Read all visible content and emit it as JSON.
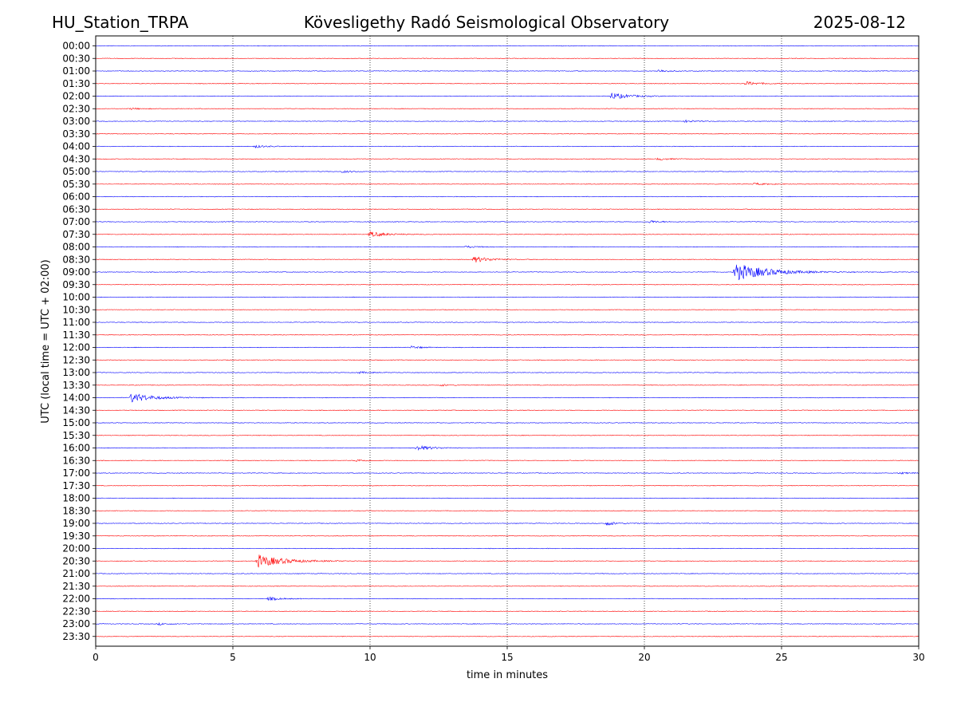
{
  "header": {
    "station": "HU_Station_TRPA",
    "observatory": "Kövesligethy Radó Seismological Observatory",
    "date": "2025-08-12"
  },
  "chart_data": {
    "type": "line",
    "title": "Kövesligethy Radó Seismological Observatory",
    "xlabel": "time in minutes",
    "ylabel": "UTC (local time = UTC + 02:00)",
    "xlim": [
      0,
      30
    ],
    "xticks": [
      "0",
      "5",
      "10",
      "15",
      "20",
      "25",
      "30"
    ],
    "grid": "vertical dotted lines at 5-minute intervals",
    "colors": {
      "even_rows": "#0000ff",
      "odd_rows": "#ff0000"
    },
    "rows": [
      "00:00",
      "00:30",
      "01:00",
      "01:30",
      "02:00",
      "02:30",
      "03:00",
      "03:30",
      "04:00",
      "04:30",
      "05:00",
      "05:30",
      "06:00",
      "06:30",
      "07:00",
      "07:30",
      "08:00",
      "08:30",
      "09:00",
      "09:30",
      "10:00",
      "10:30",
      "11:00",
      "11:30",
      "12:00",
      "12:30",
      "13:00",
      "13:30",
      "14:00",
      "14:30",
      "15:00",
      "15:30",
      "16:00",
      "16:30",
      "17:00",
      "17:30",
      "18:00",
      "18:30",
      "19:00",
      "19:30",
      "20:00",
      "20:30",
      "21:00",
      "21:30",
      "22:00",
      "22:30",
      "23:00",
      "23:30"
    ],
    "events": [
      {
        "row": "01:00",
        "minute": 20.5,
        "amplitude": 0.4
      },
      {
        "row": "01:30",
        "minute": 23.7,
        "amplitude": 0.6
      },
      {
        "row": "02:00",
        "minute": 18.8,
        "amplitude": 1.0
      },
      {
        "row": "02:30",
        "minute": 1.3,
        "amplitude": 0.25
      },
      {
        "row": "03:00",
        "minute": 21.5,
        "amplitude": 0.35
      },
      {
        "row": "04:00",
        "minute": 5.8,
        "amplitude": 0.4
      },
      {
        "row": "04:30",
        "minute": 20.5,
        "amplitude": 0.35
      },
      {
        "row": "05:00",
        "minute": 9.0,
        "amplitude": 0.35
      },
      {
        "row": "05:30",
        "minute": 24.0,
        "amplitude": 0.35
      },
      {
        "row": "07:00",
        "minute": 20.2,
        "amplitude": 0.4
      },
      {
        "row": "07:30",
        "minute": 10.0,
        "amplitude": 0.8
      },
      {
        "row": "08:00",
        "minute": 13.5,
        "amplitude": 0.3
      },
      {
        "row": "08:30",
        "minute": 13.8,
        "amplitude": 0.9
      },
      {
        "row": "09:00",
        "minute": 23.3,
        "amplitude": 2.6
      },
      {
        "row": "12:00",
        "minute": 11.5,
        "amplitude": 0.4
      },
      {
        "row": "13:00",
        "minute": 9.6,
        "amplitude": 0.3
      },
      {
        "row": "13:30",
        "minute": 12.6,
        "amplitude": 0.3
      },
      {
        "row": "14:00",
        "minute": 1.3,
        "amplitude": 1.4
      },
      {
        "row": "16:00",
        "minute": 11.7,
        "amplitude": 0.8
      },
      {
        "row": "16:30",
        "minute": 9.5,
        "amplitude": 0.35
      },
      {
        "row": "17:00",
        "minute": 29.3,
        "amplitude": 0.3
      },
      {
        "row": "19:00",
        "minute": 18.6,
        "amplitude": 0.6
      },
      {
        "row": "20:30",
        "minute": 5.9,
        "amplitude": 1.9
      },
      {
        "row": "22:00",
        "minute": 6.3,
        "amplitude": 0.5
      },
      {
        "row": "23:00",
        "minute": 2.3,
        "amplitude": 0.3
      }
    ]
  }
}
